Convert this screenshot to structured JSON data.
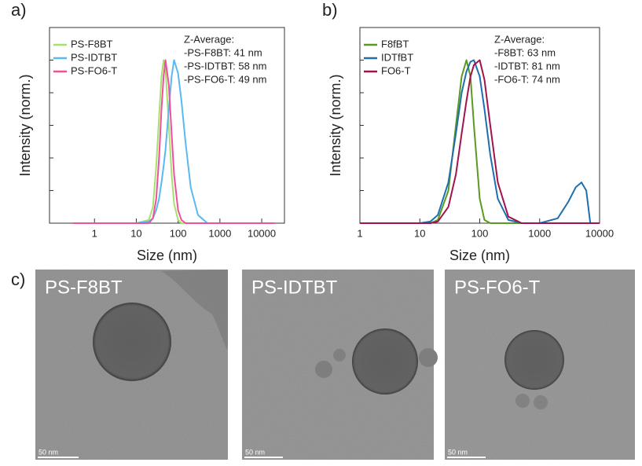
{
  "chart_data": [
    {
      "type": "line",
      "panel_label": "a)",
      "x_label": "Size (nm)",
      "y_label": "Intensity (norm.)",
      "log_x": true,
      "xlim": [
        0.084,
        35000
      ],
      "xticks": [
        1,
        10,
        100,
        1000,
        10000
      ],
      "ylim": [
        0,
        1.2
      ],
      "x": [
        0.3,
        1,
        10,
        20,
        25,
        30,
        35,
        40,
        45,
        50,
        60,
        70,
        80,
        100,
        120,
        150,
        200,
        300,
        500,
        1000,
        10000,
        20000
      ],
      "series": [
        {
          "name": "PS-F8BT",
          "color": "#a8e070",
          "values": [
            0,
            0,
            0,
            0.02,
            0.1,
            0.35,
            0.65,
            0.9,
            1,
            0.95,
            0.6,
            0.3,
            0.12,
            0.02,
            0,
            0,
            0,
            0,
            0,
            0,
            0,
            0
          ]
        },
        {
          "name": "PS-IDTBT",
          "color": "#5bb8f0",
          "values": [
            0,
            0,
            0,
            0.01,
            0.03,
            0.08,
            0.15,
            0.25,
            0.35,
            0.45,
            0.7,
            0.9,
            1,
            0.92,
            0.75,
            0.5,
            0.22,
            0.05,
            0,
            0,
            0,
            0
          ]
        },
        {
          "name": "PS-FO6-T",
          "color": "#f0509a",
          "values": [
            0,
            0,
            0,
            0,
            0.03,
            0.15,
            0.4,
            0.7,
            0.9,
            1,
            0.85,
            0.55,
            0.3,
            0.08,
            0.02,
            0,
            0,
            0,
            0,
            0,
            0,
            0
          ]
        }
      ],
      "annotations": [
        "Z-Average:",
        "-PS-F8BT: 41 nm",
        "-PS-IDTBT: 58 nm",
        "-PS-FO6-T: 49 nm"
      ]
    },
    {
      "type": "line",
      "panel_label": "b)",
      "x_label": "Size (nm)",
      "y_label": "Intensity (norm.)",
      "log_x": true,
      "xlim": [
        1,
        10000
      ],
      "xticks": [
        1,
        10,
        100,
        1000,
        10000
      ],
      "ylim": [
        0,
        1.2
      ],
      "x": [
        1,
        10,
        15,
        20,
        30,
        40,
        50,
        60,
        70,
        80,
        100,
        120,
        150,
        200,
        300,
        500,
        1000,
        2000,
        3000,
        4000,
        5000,
        6000,
        7000,
        10000
      ],
      "series": [
        {
          "name": "F8fBT",
          "color": "#5a9a22",
          "values": [
            0,
            0,
            0,
            0.02,
            0.2,
            0.6,
            0.9,
            1,
            0.9,
            0.6,
            0.15,
            0.02,
            0,
            0,
            0,
            0,
            0,
            0,
            0,
            0,
            0,
            0,
            0,
            0
          ]
        },
        {
          "name": "IDTfBT",
          "color": "#1f6fae",
          "values": [
            0,
            0,
            0.01,
            0.05,
            0.25,
            0.55,
            0.8,
            0.93,
            0.99,
            1,
            0.9,
            0.7,
            0.42,
            0.15,
            0.02,
            0,
            0,
            0.03,
            0.13,
            0.22,
            0.25,
            0.2,
            0,
            0
          ]
        },
        {
          "name": "FO6-T",
          "color": "#a2124c",
          "values": [
            0,
            0,
            0,
            0.01,
            0.1,
            0.3,
            0.55,
            0.75,
            0.9,
            0.97,
            1,
            0.88,
            0.6,
            0.25,
            0.04,
            0,
            0,
            0,
            0,
            0,
            0,
            0,
            0,
            0
          ]
        }
      ],
      "annotations": [
        "Z-Average:",
        "-F8BT: 63 nm",
        "-IDTBT: 81 nm",
        "-FO6-T: 74 nm"
      ]
    }
  ],
  "panel_labels": [
    "c)"
  ],
  "images": [
    {
      "label": "PS-F8BT",
      "scale_bar": "50 nm"
    },
    {
      "label": "PS-IDTBT",
      "scale_bar": "50 nm"
    },
    {
      "label": "PS-FO6-T",
      "scale_bar": "50 nm"
    }
  ]
}
